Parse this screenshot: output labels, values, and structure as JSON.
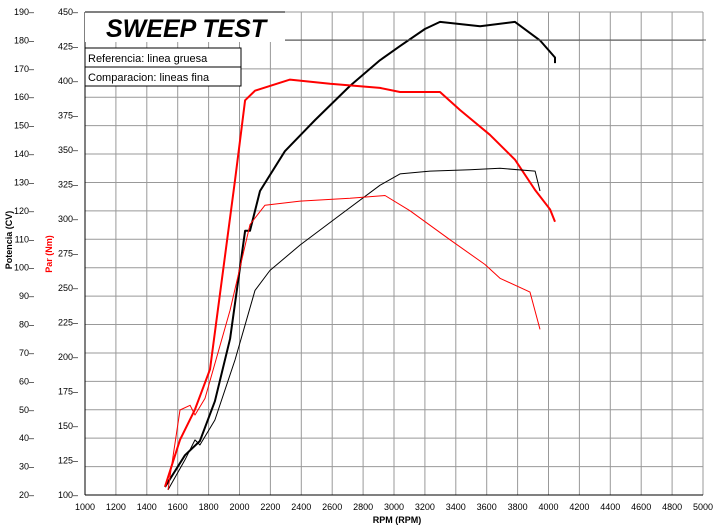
{
  "chart_data": {
    "type": "line",
    "title": "SWEEP TEST",
    "legend": [
      "Referencia: linea gruesa",
      "Comparacion: lineas fina"
    ],
    "legend_placement": "top-left",
    "xlabel": "RPM (RPM)",
    "ylabel_left": "Potencia (CV)",
    "ylabel_right": "Par (Nm)",
    "xlim": [
      1000,
      5000
    ],
    "ylim_power": [
      20,
      190
    ],
    "ylim_torque": [
      100,
      450
    ],
    "x_ticks": [
      1000,
      1200,
      1400,
      1600,
      1800,
      2000,
      2200,
      2400,
      2600,
      2800,
      3000,
      3200,
      3400,
      3600,
      3800,
      4000,
      4200,
      4400,
      4600,
      4800,
      5000
    ],
    "power_ticks": [
      20,
      30,
      40,
      50,
      60,
      70,
      80,
      90,
      100,
      110,
      120,
      130,
      140,
      150,
      160,
      170,
      180,
      190
    ],
    "torque_ticks": [
      100,
      125,
      150,
      175,
      200,
      225,
      250,
      275,
      300,
      325,
      350,
      375,
      400,
      425,
      450
    ],
    "grid": true,
    "colors": {
      "power": "#000000",
      "torque": "#ff0000",
      "grid": "#999999"
    },
    "series": [
      {
        "name": "Potencia referencia",
        "axis": "power",
        "style": "thick",
        "color": "#000000",
        "x": [
          1518,
          1647,
          1744,
          1841,
          1939,
          2036,
          2068,
          2133,
          2294,
          2489,
          2715,
          2909,
          3039,
          3200,
          3298,
          3557,
          3783,
          3945,
          4042,
          4042
        ],
        "y": [
          22.8,
          34,
          39,
          53,
          75,
          113,
          113,
          127,
          141,
          152,
          164,
          173,
          178,
          184,
          186.5,
          185,
          186.5,
          180,
          174,
          172
        ]
      },
      {
        "name": "Par referencia",
        "axis": "torque",
        "style": "thick",
        "color": "#ff0000",
        "x": [
          1518,
          1615,
          1712,
          1809,
          1971,
          2036,
          2100,
          2327,
          2586,
          2909,
          3039,
          3298,
          3427,
          3621,
          3783,
          3913,
          4010,
          4042
        ],
        "y": [
          106,
          140,
          162,
          191,
          328,
          386,
          393,
          401,
          398,
          395,
          392,
          392,
          379,
          361,
          343,
          321,
          307,
          298
        ]
      },
      {
        "name": "Potencia comparacion",
        "axis": "power",
        "style": "thin",
        "color": "#000000",
        "x": [
          1537,
          1647,
          1712,
          1744,
          1841,
          1971,
          2100,
          2197,
          2392,
          2650,
          2909,
          3039,
          3233,
          3492,
          3686,
          3913,
          3945
        ],
        "y": [
          21.8,
          32.4,
          39.4,
          37.6,
          46.4,
          67.5,
          92,
          99,
          108,
          118.5,
          129,
          133,
          134,
          134.5,
          135,
          134,
          127
        ]
      },
      {
        "name": "Par comparacion",
        "axis": "torque",
        "style": "thin",
        "color": "#ff0000",
        "x": [
          1537,
          1615,
          1680,
          1712,
          1777,
          1939,
          2068,
          2165,
          2392,
          2715,
          2942,
          3103,
          3362,
          3589,
          3686,
          3880,
          3945
        ],
        "y": [
          103.7,
          161.6,
          165,
          158,
          170,
          234,
          296,
          310,
          313,
          315,
          317,
          306,
          285,
          267,
          257,
          247,
          220
        ]
      }
    ]
  }
}
